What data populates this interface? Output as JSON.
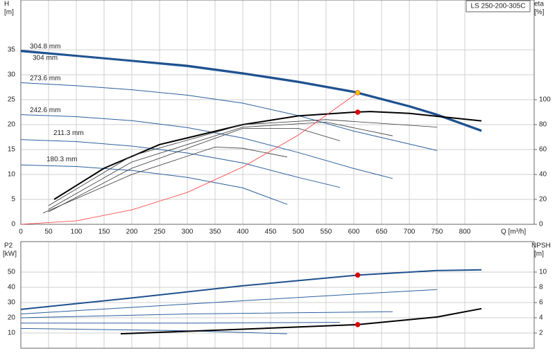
{
  "chart_data": [
    {
      "type": "line",
      "model": "LS 250-200-305C",
      "y_label": "H",
      "y_unit": "[m]",
      "y2_label": "eta",
      "y2_unit": "[%]",
      "x_label": "Q [m³/h]",
      "xlim": [
        0,
        925
      ],
      "xticks": [
        0,
        50,
        100,
        150,
        200,
        250,
        300,
        350,
        400,
        450,
        500,
        550,
        600,
        650,
        700,
        750,
        800
      ],
      "ylim": [
        0,
        45
      ],
      "yticks": [
        0,
        5,
        10,
        15,
        20,
        25,
        30,
        35
      ],
      "y2lim": [
        0,
        180
      ],
      "y2ticks": [
        0,
        20,
        40,
        60,
        80,
        100
      ],
      "grid": true,
      "series": [
        {
          "name": "304.8 mm",
          "color": "#1d4f8c",
          "line_width": 3,
          "x": [
            0,
            150,
            300,
            400,
            500,
            600,
            700,
            750,
            830
          ],
          "values": [
            34.8,
            33.3,
            31.8,
            30.3,
            28.6,
            26.6,
            23.7,
            22,
            18.8
          ]
        },
        {
          "name": "304 mm",
          "color": "#2a5f9e",
          "line_width": 1,
          "x": [
            0,
            150,
            300,
            400,
            500,
            600,
            700,
            750,
            830
          ],
          "values": [
            34.6,
            33.2,
            31.6,
            30.1,
            28.4,
            26.4,
            23.5,
            21.8,
            18.6
          ]
        },
        {
          "name": "273.6 mm",
          "color": "#2a5f9e",
          "line_width": 1,
          "x": [
            0,
            100,
            200,
            300,
            400,
            500,
            600,
            750
          ],
          "values": [
            28.4,
            27.8,
            27,
            25.9,
            24.3,
            21.8,
            18.7,
            14.8
          ]
        },
        {
          "name": "242.6 mm",
          "color": "#2a5f9e",
          "line_width": 1,
          "x": [
            0,
            100,
            200,
            300,
            400,
            500,
            600,
            670
          ],
          "values": [
            22,
            21.6,
            20.8,
            19.4,
            17.3,
            14.4,
            11.2,
            9.2
          ]
        },
        {
          "name": "211.3 mm",
          "color": "#2a5f9e",
          "line_width": 1,
          "x": [
            0,
            100,
            200,
            300,
            400,
            500,
            575
          ],
          "values": [
            17,
            16.6,
            15.7,
            14.3,
            12.3,
            9.4,
            7.4
          ]
        },
        {
          "name": "180.3 mm",
          "color": "#2a5f9e",
          "line_width": 1,
          "x": [
            0,
            100,
            200,
            300,
            400,
            480
          ],
          "values": [
            11.9,
            11.6,
            10.8,
            9.4,
            7.3,
            4
          ]
        },
        {
          "color": "#000000",
          "line_width": 2,
          "axis": "y2",
          "x": [
            60,
            150,
            250,
            400,
            500,
            600,
            630,
            700,
            830
          ],
          "values": [
            20,
            45,
            64,
            80,
            87,
            90,
            90.5,
            89,
            83
          ]
        },
        {
          "color": "#333333",
          "line_width": 0.8,
          "axis": "y2",
          "x": [
            50,
            200,
            400,
            550,
            750
          ],
          "values": [
            15,
            55,
            80,
            84,
            78
          ]
        },
        {
          "color": "#333333",
          "line_width": 0.8,
          "axis": "y2",
          "x": [
            50,
            200,
            400,
            550,
            670
          ],
          "values": [
            12,
            50,
            78,
            82,
            71
          ]
        },
        {
          "color": "#333333",
          "line_width": 0.8,
          "axis": "y2",
          "x": [
            50,
            200,
            400,
            500,
            575
          ],
          "values": [
            10,
            45,
            77,
            77,
            67
          ]
        },
        {
          "color": "#333333",
          "line_width": 0.8,
          "axis": "y2",
          "x": [
            40,
            200,
            350,
            400,
            480
          ],
          "values": [
            9,
            40,
            62,
            61,
            54
          ]
        },
        {
          "color": "#ff3030",
          "line_width": 0.8,
          "x": [
            0,
            100,
            200,
            300,
            400,
            500,
            607
          ],
          "values": [
            0,
            0.7,
            2.9,
            6.4,
            11.5,
            17.9,
            26.4
          ]
        },
        {
          "color": "#f5c400",
          "marker": true,
          "x": [
            607
          ],
          "values": [
            26.4
          ]
        },
        {
          "color": "#e00000",
          "marker": true,
          "axis": "y2",
          "x": [
            607
          ],
          "values": [
            90
          ]
        }
      ]
    },
    {
      "type": "line",
      "y_label": "P2",
      "y_unit": "[kW]",
      "y2_label": "NPSH",
      "y2_unit": "[m]",
      "xlim": [
        0,
        925
      ],
      "ylim": [
        0,
        70
      ],
      "yticks": [
        10,
        20,
        30,
        40,
        50
      ],
      "y2lim": [
        0,
        14
      ],
      "y2ticks": [
        2,
        4,
        6,
        8,
        10
      ],
      "grid": true,
      "series": [
        {
          "color": "#1d4f8c",
          "line_width": 2,
          "x": [
            0,
            200,
            400,
            607,
            750,
            830
          ],
          "values": [
            25.5,
            33,
            41,
            48,
            51,
            51.5
          ]
        },
        {
          "color": "#2a5f9e",
          "line_width": 1,
          "x": [
            0,
            300,
            600,
            750
          ],
          "values": [
            22.5,
            29,
            35.5,
            38.5
          ]
        },
        {
          "color": "#2a5f9e",
          "line_width": 1,
          "x": [
            0,
            300,
            670
          ],
          "values": [
            20,
            22.5,
            24
          ]
        },
        {
          "color": "#2a5f9e",
          "line_width": 1,
          "x": [
            0,
            300,
            575
          ],
          "values": [
            16.5,
            16.5,
            17
          ]
        },
        {
          "color": "#2a5f9e",
          "line_width": 1,
          "x": [
            0,
            300,
            480
          ],
          "values": [
            13,
            11.5,
            9.5
          ]
        },
        {
          "color": "#000000",
          "line_width": 2,
          "axis": "y2",
          "x": [
            180,
            400,
            607,
            750,
            830
          ],
          "values": [
            1.9,
            2.5,
            3.1,
            4.1,
            5.2
          ]
        },
        {
          "color": "#e00000",
          "marker": true,
          "x": [
            607
          ],
          "values": [
            48
          ]
        },
        {
          "color": "#e00000",
          "marker": true,
          "axis": "y2",
          "x": [
            607
          ],
          "values": [
            3.1
          ]
        }
      ]
    }
  ]
}
